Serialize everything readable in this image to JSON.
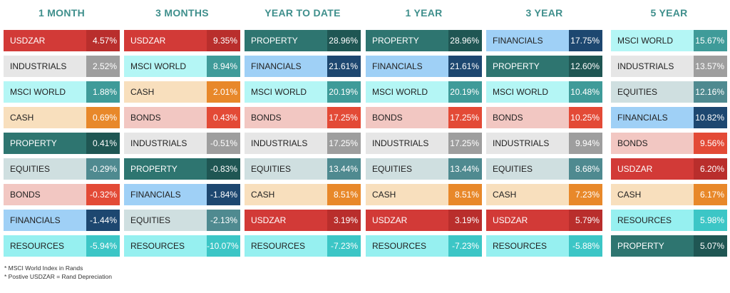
{
  "chart_data": {
    "type": "table",
    "columns": [
      {
        "header": "1 MONTH",
        "rows": [
          {
            "asset": "USDZAR",
            "value": "4.57%"
          },
          {
            "asset": "INDUSTRIALS",
            "value": "2.52%"
          },
          {
            "asset": "MSCI WORLD",
            "value": "1.88%"
          },
          {
            "asset": "CASH",
            "value": "0.69%"
          },
          {
            "asset": "PROPERTY",
            "value": "0.41%"
          },
          {
            "asset": "EQUITIES",
            "value": "-0.29%"
          },
          {
            "asset": "BONDS",
            "value": "-0.32%"
          },
          {
            "asset": "FINANCIALS",
            "value": "-1.44%"
          },
          {
            "asset": "RESOURCES",
            "value": "-5.94%"
          }
        ]
      },
      {
        "header": "3 MONTHS",
        "rows": [
          {
            "asset": "USDZAR",
            "value": "9.35%"
          },
          {
            "asset": "MSCI WORLD",
            "value": "8.94%"
          },
          {
            "asset": "CASH",
            "value": "2.01%"
          },
          {
            "asset": "BONDS",
            "value": "0.43%"
          },
          {
            "asset": "INDUSTRIALS",
            "value": "-0.51%"
          },
          {
            "asset": "PROPERTY",
            "value": "-0.83%"
          },
          {
            "asset": "FINANCIALS",
            "value": "-1.84%"
          },
          {
            "asset": "EQUITIES",
            "value": "-2.13%"
          },
          {
            "asset": "RESOURCES",
            "value": "-10.07%"
          }
        ]
      },
      {
        "header": "YEAR TO DATE",
        "rows": [
          {
            "asset": "PROPERTY",
            "value": "28.96%"
          },
          {
            "asset": "FINANCIALS",
            "value": "21.61%"
          },
          {
            "asset": "MSCI WORLD",
            "value": "20.19%"
          },
          {
            "asset": "BONDS",
            "value": "17.25%"
          },
          {
            "asset": "INDUSTRIALS",
            "value": "17.25%"
          },
          {
            "asset": "EQUITIES",
            "value": "13.44%"
          },
          {
            "asset": "CASH",
            "value": "8.51%"
          },
          {
            "asset": "USDZAR",
            "value": "3.19%"
          },
          {
            "asset": "RESOURCES",
            "value": "-7.23%"
          }
        ]
      },
      {
        "header": "1 YEAR",
        "rows": [
          {
            "asset": "PROPERTY",
            "value": "28.96%"
          },
          {
            "asset": "FINANCIALS",
            "value": "21.61%"
          },
          {
            "asset": "MSCI WORLD",
            "value": "20.19%"
          },
          {
            "asset": "BONDS",
            "value": "17.25%"
          },
          {
            "asset": "INDUSTRIALS",
            "value": "17.25%"
          },
          {
            "asset": "EQUITIES",
            "value": "13.44%"
          },
          {
            "asset": "CASH",
            "value": "8.51%"
          },
          {
            "asset": "USDZAR",
            "value": "3.19%"
          },
          {
            "asset": "RESOURCES",
            "value": "-7.23%"
          }
        ]
      },
      {
        "header": "3 YEAR",
        "rows": [
          {
            "asset": "FINANCIALS",
            "value": "17.75%"
          },
          {
            "asset": "PROPERTY",
            "value": "12.60%"
          },
          {
            "asset": "MSCI WORLD",
            "value": "10.48%"
          },
          {
            "asset": "BONDS",
            "value": "10.25%"
          },
          {
            "asset": "INDUSTRIALS",
            "value": "9.94%"
          },
          {
            "asset": "EQUITIES",
            "value": "8.68%"
          },
          {
            "asset": "CASH",
            "value": "7.23%"
          },
          {
            "asset": "USDZAR",
            "value": "5.79%"
          },
          {
            "asset": "RESOURCES",
            "value": "-5.88%"
          }
        ]
      },
      {
        "header": "5 YEAR",
        "rows": [
          {
            "asset": "MSCI WORLD",
            "value": "15.67%"
          },
          {
            "asset": "INDUSTRIALS",
            "value": "13.57%"
          },
          {
            "asset": "EQUITIES",
            "value": "12.16%"
          },
          {
            "asset": "FINANCIALS",
            "value": "10.82%"
          },
          {
            "asset": "BONDS",
            "value": "9.56%"
          },
          {
            "asset": "USDZAR",
            "value": "6.20%"
          },
          {
            "asset": "CASH",
            "value": "6.17%"
          },
          {
            "asset": "RESOURCES",
            "value": "5.98%"
          },
          {
            "asset": "PROPERTY",
            "value": "5.07%"
          }
        ]
      }
    ],
    "asset_colors": {
      "USDZAR": {
        "label_bg": "#d23a37",
        "value_bg": "#b92e2c",
        "text": "#ffffff"
      },
      "INDUSTRIALS": {
        "label_bg": "#e6e6e6",
        "value_bg": "#9e9e9e",
        "text": "#222222",
        "value_text": "#ffffff"
      },
      "MSCI WORLD": {
        "label_bg": "#b4f6f5",
        "value_bg": "#3f9b99",
        "text": "#222222",
        "value_text": "#ffffff"
      },
      "CASH": {
        "label_bg": "#f8dfbd",
        "value_bg": "#e8882a",
        "text": "#222222",
        "value_text": "#ffffff"
      },
      "PROPERTY": {
        "label_bg": "#2e7570",
        "value_bg": "#1f5653",
        "text": "#ffffff"
      },
      "EQUITIES": {
        "label_bg": "#cfdfe0",
        "value_bg": "#4f8a90",
        "text": "#222222",
        "value_text": "#ffffff"
      },
      "BONDS": {
        "label_bg": "#f2c7c2",
        "value_bg": "#e34a36",
        "text": "#222222",
        "value_text": "#ffffff"
      },
      "FINANCIALS": {
        "label_bg": "#9fd0f6",
        "value_bg": "#1d4770",
        "text": "#222222",
        "value_text": "#ffffff"
      },
      "RESOURCES": {
        "label_bg": "#96f0f0",
        "value_bg": "#3cc6c6",
        "text": "#222222",
        "value_text": "#ffffff"
      }
    },
    "header_color": "#3f8f8c"
  },
  "notes": [
    "* MSCI World Index in  Rands",
    "* Postive USDZAR = Rand Depreciation"
  ]
}
